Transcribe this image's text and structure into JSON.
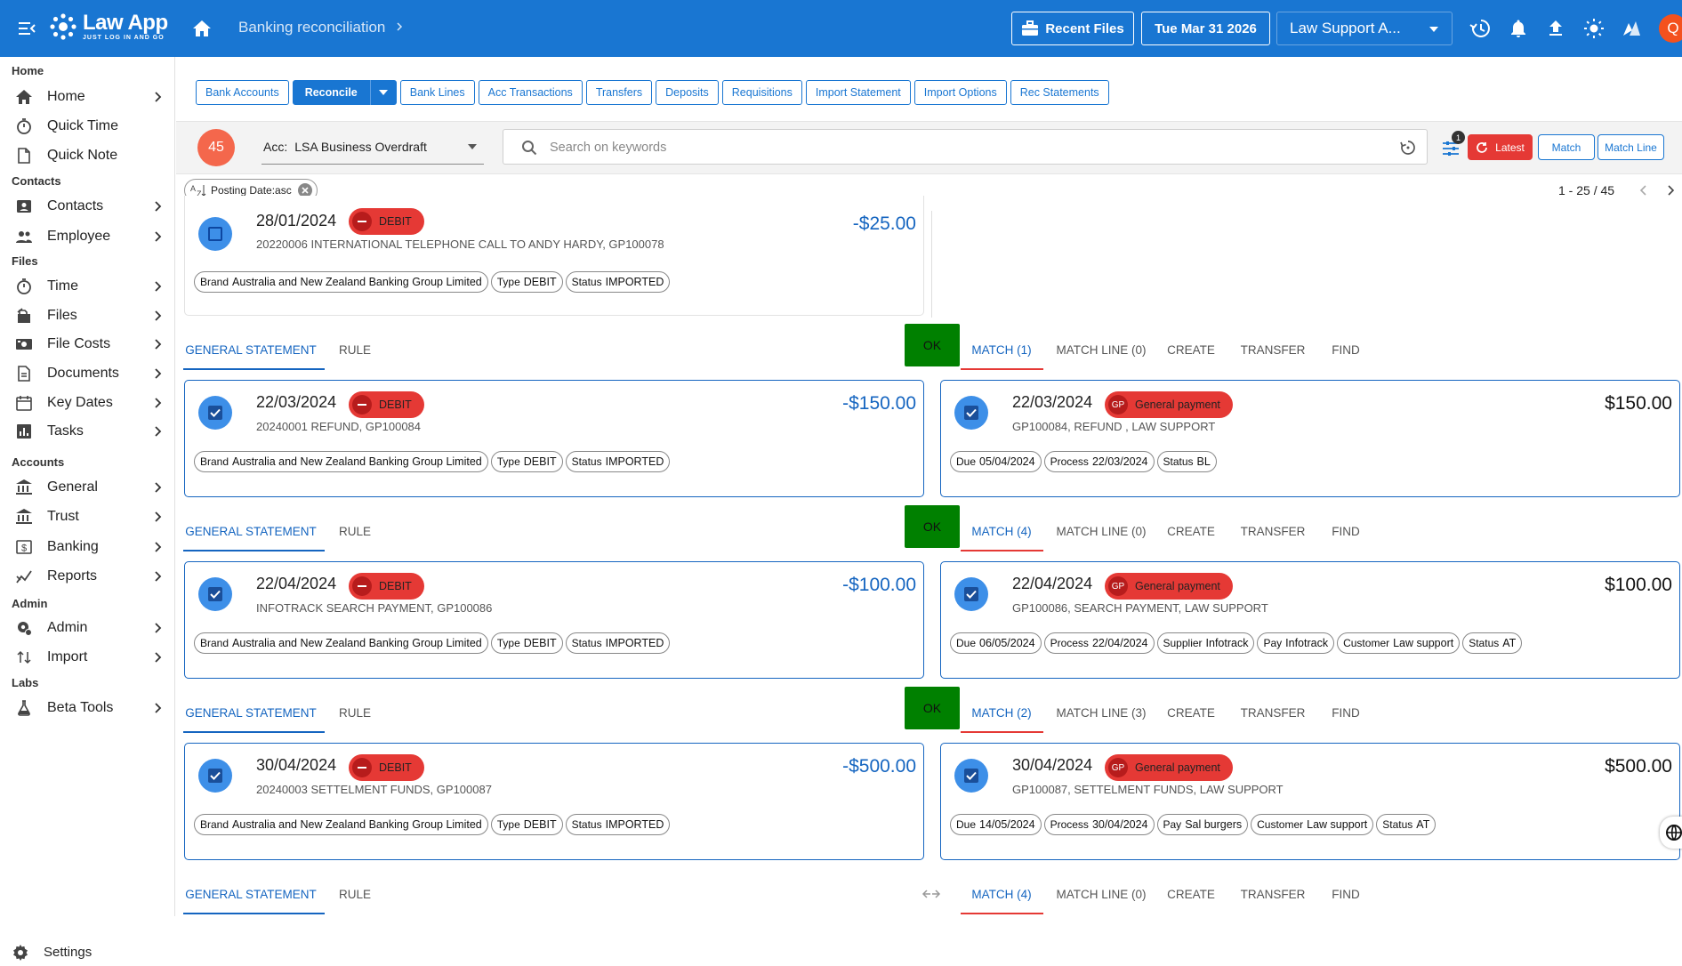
{
  "header": {
    "app_name": "Law App",
    "app_tagline": "JUST LOG IN AND GO",
    "page_title": "Banking reconciliation",
    "recent_files_label": "Recent Files",
    "date_label": "Tue Mar 31 2026",
    "entity_select": "Law Support A...",
    "avatar_initial": "Q"
  },
  "sidebar": {
    "sections": [
      {
        "title": "Home",
        "items": [
          {
            "label": "Home",
            "icon": "home-icon",
            "chevron": true
          },
          {
            "label": "Quick Time",
            "icon": "stopwatch-icon",
            "chevron": false
          },
          {
            "label": "Quick Note",
            "icon": "note-icon",
            "chevron": false
          }
        ]
      },
      {
        "title": "Contacts",
        "items": [
          {
            "label": "Contacts",
            "icon": "contact-card-icon",
            "chevron": true
          },
          {
            "label": "Employee",
            "icon": "people-icon",
            "chevron": true
          }
        ]
      },
      {
        "title": "Files",
        "items": [
          {
            "label": "Time",
            "icon": "stopwatch-icon",
            "chevron": true
          },
          {
            "label": "Files",
            "icon": "files-icon",
            "chevron": true
          },
          {
            "label": "File Costs",
            "icon": "money-icon",
            "chevron": true
          },
          {
            "label": "Documents",
            "icon": "document-icon",
            "chevron": true
          },
          {
            "label": "Key Dates",
            "icon": "calendar-icon",
            "chevron": true
          },
          {
            "label": "Tasks",
            "icon": "tasks-chart-icon",
            "chevron": true
          }
        ]
      },
      {
        "title": "Accounts",
        "items": [
          {
            "label": "General",
            "icon": "bank-icon",
            "chevron": true
          },
          {
            "label": "Trust",
            "icon": "bank-icon",
            "chevron": true
          },
          {
            "label": "Banking",
            "icon": "dollar-icon",
            "chevron": true
          },
          {
            "label": "Reports",
            "icon": "reports-icon",
            "chevron": true
          }
        ]
      },
      {
        "title": "Admin",
        "items": [
          {
            "label": "Admin",
            "icon": "admin-gear-icon",
            "chevron": true
          },
          {
            "label": "Import",
            "icon": "import-icon",
            "chevron": true
          }
        ]
      },
      {
        "title": "Labs",
        "items": [
          {
            "label": "Beta Tools",
            "icon": "flask-icon",
            "chevron": true
          }
        ]
      }
    ],
    "settings_label": "Settings"
  },
  "tabs": [
    "Bank Accounts",
    "Reconcile",
    "Bank Lines",
    "Acc Transactions",
    "Transfers",
    "Deposits",
    "Requisitions",
    "Import Statement",
    "Import Options",
    "Rec Statements"
  ],
  "active_tab": "Reconcile",
  "filter": {
    "count": "45",
    "account_prefix": "Acc:",
    "account": "LSA Business Overdraft",
    "search_placeholder": "Search on keywords",
    "filter_badge": "1",
    "latest_label": "Latest",
    "match_label": "Match",
    "match_line_label": "Match Line",
    "sort_chip": "Posting Date:asc",
    "paging": "1 - 25 / 45"
  },
  "row_tabs": {
    "general_statement": "GENERAL STATEMENT",
    "rule": "RULE",
    "ok": "OK",
    "match_line": "MATCH LINE",
    "create": "CREATE",
    "transfer": "TRANSFER",
    "find": "FIND"
  },
  "chip_labels": {
    "brand": "Brand",
    "type": "Type",
    "status": "Status",
    "due": "Due",
    "process": "Process",
    "supplier": "Supplier",
    "pay": "Pay",
    "customer": "Customer"
  },
  "first_row": {
    "date": "28/01/2024",
    "badge": "DEBIT",
    "desc": "20220006 INTERNATIONAL TELEPHONE CALL TO ANDY HARDY, GP100078",
    "amount": "-$25.00",
    "brand": "Australia and New Zealand Banking Group Limited",
    "type": "DEBIT",
    "status": "IMPORTED"
  },
  "rows": [
    {
      "tabs": {
        "match": "MATCH (1)",
        "match_line": "MATCH LINE (0)"
      },
      "left": {
        "date": "22/03/2024",
        "badge": "DEBIT",
        "desc": "20240001 REFUND, GP100084",
        "amount": "-$150.00",
        "brand": "Australia and New Zealand Banking Group Limited",
        "type": "DEBIT",
        "status": "IMPORTED"
      },
      "right": {
        "date": "22/03/2024",
        "badge_initials": "GP",
        "badge": "General payment",
        "desc": "GP100084, REFUND , LAW SUPPORT",
        "amount": "$150.00",
        "due": "05/04/2024",
        "process": "22/03/2024",
        "status": "BL"
      }
    },
    {
      "tabs": {
        "match": "MATCH (4)",
        "match_line": "MATCH LINE (0)"
      },
      "left": {
        "date": "22/04/2024",
        "badge": "DEBIT",
        "desc": "INFOTRACK SEARCH PAYMENT, GP100086",
        "amount": "-$100.00",
        "brand": "Australia and New Zealand Banking Group Limited",
        "type": "DEBIT",
        "status": "IMPORTED"
      },
      "right": {
        "date": "22/04/2024",
        "badge_initials": "GP",
        "badge": "General payment",
        "desc": "GP100086, SEARCH PAYMENT, LAW SUPPORT",
        "amount": "$100.00",
        "due": "06/05/2024",
        "process": "22/04/2024",
        "supplier": "Infotrack",
        "pay": "Infotrack",
        "customer": "Law support",
        "status": "AT"
      }
    },
    {
      "tabs": {
        "match": "MATCH (2)",
        "match_line": "MATCH LINE (3)"
      },
      "left": {
        "date": "30/04/2024",
        "badge": "DEBIT",
        "desc": "20240003 SETTELMENT FUNDS, GP100087",
        "amount": "-$500.00",
        "brand": "Australia and New Zealand Banking Group Limited",
        "type": "DEBIT",
        "status": "IMPORTED"
      },
      "right": {
        "date": "30/04/2024",
        "badge_initials": "GP",
        "badge": "General payment",
        "desc": "GP100087, SETTELMENT FUNDS, LAW SUPPORT",
        "amount": "$500.00",
        "due": "14/05/2024",
        "process": "30/04/2024",
        "pay": "Sal burgers",
        "customer": "Law support",
        "status": "AT"
      }
    },
    {
      "tabs": {
        "match": "MATCH (4)",
        "match_line": "MATCH LINE (0)"
      }
    }
  ],
  "colors": {
    "primary": "#1976d2",
    "debit_badge": "#e53935",
    "ok_green": "#008000",
    "latest_red": "#e53935",
    "count_badge": "#f4674c"
  }
}
